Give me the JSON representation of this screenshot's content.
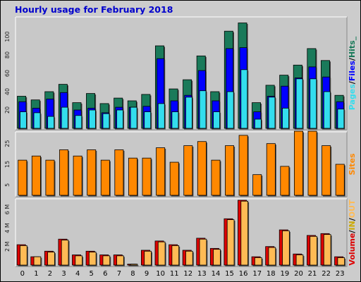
{
  "title": "Hourly usage for February 2018",
  "colors": {
    "title": "#0000cc",
    "background": "#cccccc",
    "hits": "#1a7a5a",
    "files": "#0000ff",
    "pages": "#33ddee",
    "sites": "#ff8800",
    "volume_in": "#dd0000",
    "volume_out": "#ffbb55"
  },
  "chart_data": [
    {
      "type": "bar",
      "panel": "pages_files_hits",
      "categories": [
        "0",
        "1",
        "2",
        "3",
        "4",
        "5",
        "6",
        "7",
        "8",
        "9",
        "10",
        "11",
        "12",
        "13",
        "14",
        "15",
        "16",
        "17",
        "18",
        "19",
        "20",
        "21",
        "22",
        "23"
      ],
      "ylim": [
        0,
        120
      ],
      "yticks": [
        "20",
        "40",
        "60",
        "80",
        "100"
      ],
      "side_label_parts": [
        "Pages",
        "/",
        "Files",
        "/",
        "Hits",
        "_"
      ],
      "series": [
        {
          "name": "Hits",
          "values": [
            35,
            31,
            40,
            48,
            28,
            38,
            27,
            33,
            30,
            37,
            90,
            43,
            53,
            79,
            40,
            106,
            115,
            28,
            47,
            58,
            69,
            87,
            74,
            36
          ]
        },
        {
          "name": "Files",
          "values": [
            29,
            22,
            32,
            39,
            20,
            22,
            17,
            23,
            23,
            24,
            76,
            30,
            36,
            63,
            30,
            87,
            88,
            18,
            35,
            46,
            55,
            67,
            56,
            29
          ]
        },
        {
          "name": "Pages",
          "values": [
            18,
            17,
            13,
            23,
            14,
            20,
            16,
            20,
            23,
            18,
            27,
            18,
            34,
            41,
            18,
            40,
            64,
            10,
            34,
            22,
            54,
            54,
            40,
            21
          ]
        }
      ]
    },
    {
      "type": "bar",
      "panel": "sites",
      "categories": [
        "0",
        "1",
        "2",
        "3",
        "4",
        "5",
        "6",
        "7",
        "8",
        "9",
        "10",
        "11",
        "12",
        "13",
        "14",
        "15",
        "16",
        "17",
        "18",
        "19",
        "20",
        "21",
        "22",
        "23"
      ],
      "ylim": [
        0,
        30
      ],
      "yticks": [
        "5",
        "15",
        "25"
      ],
      "side_label": "Sites",
      "series": [
        {
          "name": "Sites",
          "values": [
            17,
            19,
            17,
            22,
            19,
            22,
            17,
            22,
            18,
            18,
            23,
            16,
            24,
            26,
            17,
            24,
            29,
            10,
            25,
            14,
            31,
            31,
            24,
            15
          ]
        }
      ]
    },
    {
      "type": "bar",
      "panel": "volume",
      "categories": [
        "0",
        "1",
        "2",
        "3",
        "4",
        "5",
        "6",
        "7",
        "8",
        "9",
        "10",
        "11",
        "12",
        "13",
        "14",
        "15",
        "16",
        "17",
        "18",
        "19",
        "20",
        "21",
        "22",
        "23"
      ],
      "ylim": [
        0,
        7
      ],
      "yticks": [
        "2 M",
        "4 M",
        "6 M"
      ],
      "side_label_parts": [
        "Volume",
        "/",
        "IN",
        "/",
        "OUT"
      ],
      "series": [
        {
          "name": "IN",
          "values": [
            2.2,
            0.9,
            1.5,
            2.8,
            1.1,
            1.5,
            1.1,
            1.1,
            0.1,
            1.6,
            2.6,
            2.2,
            1.6,
            2.9,
            1.8,
            5.0,
            7.0,
            0.9,
            2.0,
            3.8,
            1.2,
            3.2,
            3.4,
            0.9
          ]
        },
        {
          "name": "OUT",
          "values": [
            2.1,
            0.9,
            1.4,
            2.7,
            1.0,
            1.4,
            1.0,
            1.0,
            0.1,
            1.5,
            2.5,
            2.1,
            1.5,
            2.8,
            1.7,
            4.9,
            6.9,
            0.8,
            1.9,
            3.7,
            1.1,
            3.1,
            3.3,
            0.8
          ]
        }
      ]
    }
  ]
}
